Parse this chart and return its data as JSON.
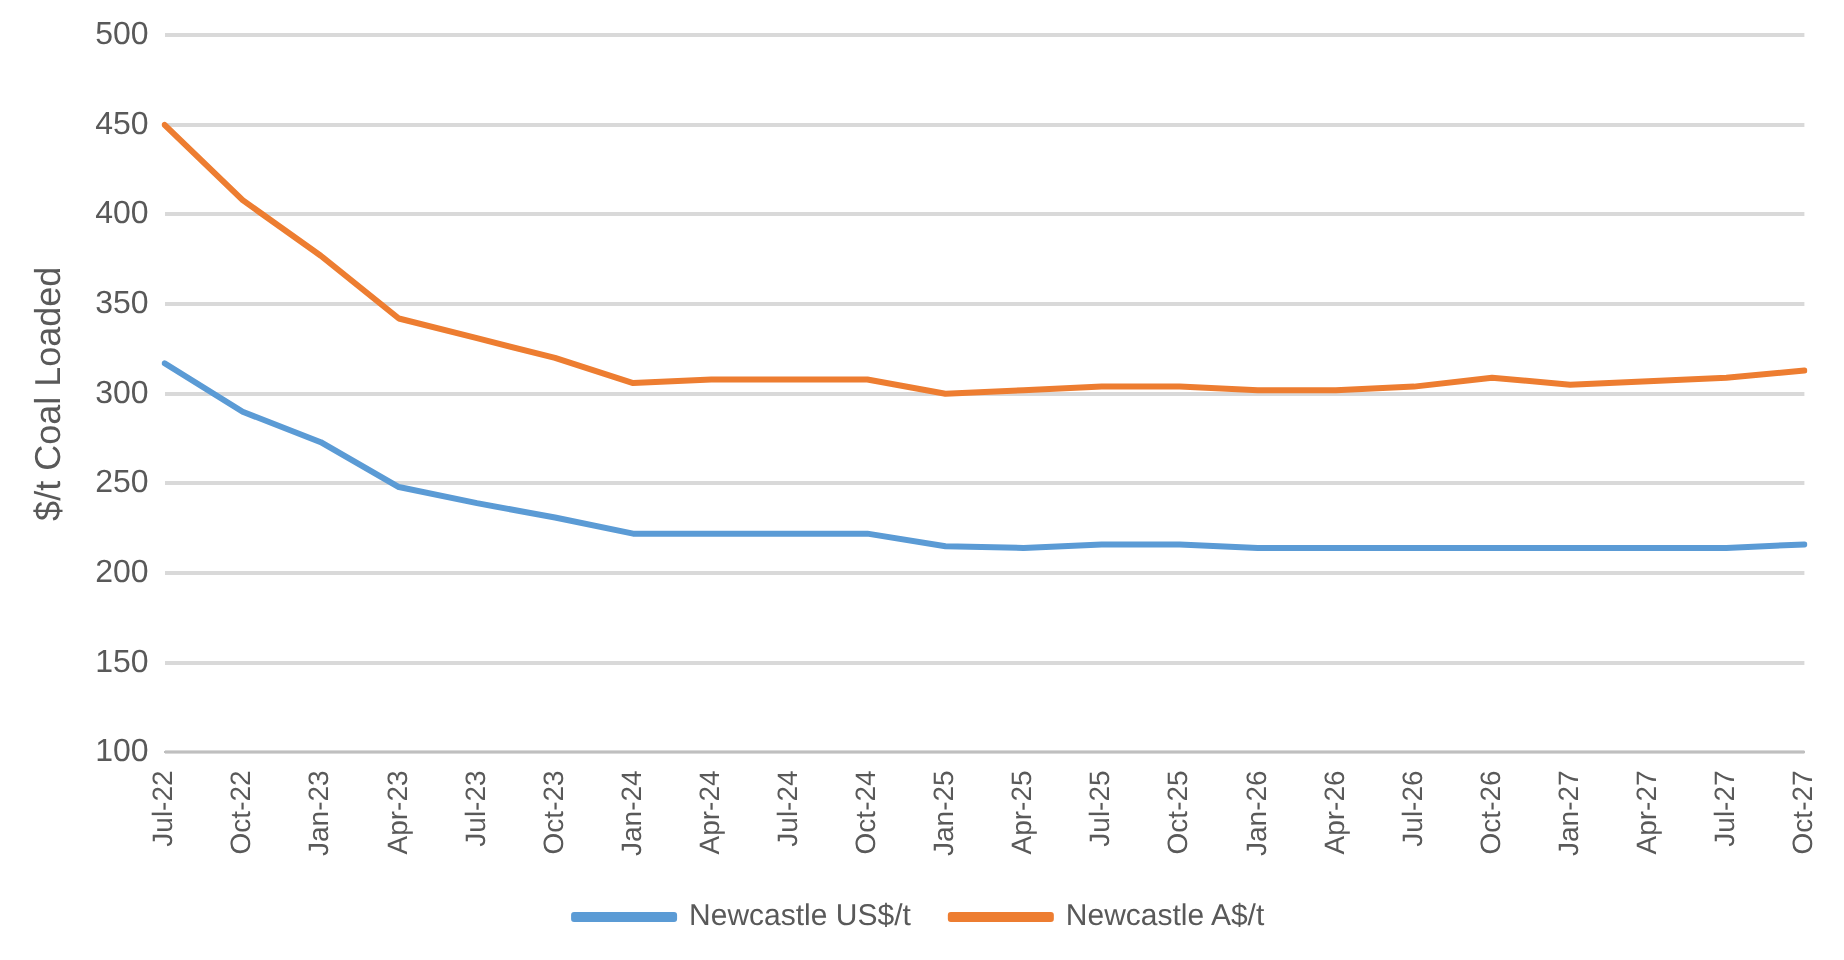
{
  "chart_data": {
    "type": "line",
    "ylabel": "$/t Coal Loaded",
    "categories": [
      "Jul-22",
      "Oct-22",
      "Jan-23",
      "Apr-23",
      "Jul-23",
      "Oct-23",
      "Jan-24",
      "Apr-24",
      "Jul-24",
      "Oct-24",
      "Jan-25",
      "Apr-25",
      "Jul-25",
      "Oct-25",
      "Jan-26",
      "Apr-26",
      "Jul-26",
      "Oct-26",
      "Jan-27",
      "Apr-27",
      "Jul-27",
      "Oct-27"
    ],
    "series": [
      {
        "name": "Newcastle US$/t",
        "color": "#5b9bd5",
        "values": [
          317,
          290,
          273,
          248,
          239,
          231,
          222,
          222,
          222,
          222,
          215,
          214,
          216,
          216,
          214,
          214,
          214,
          214,
          214,
          214,
          214,
          216
        ]
      },
      {
        "name": "Newcastle A$/t",
        "color": "#ed7d31",
        "values": [
          450,
          408,
          377,
          342,
          331,
          320,
          306,
          308,
          308,
          308,
          300,
          302,
          304,
          304,
          302,
          302,
          304,
          309,
          305,
          307,
          309,
          313
        ]
      }
    ],
    "ylim": [
      100,
      500
    ],
    "yticks": [
      100,
      150,
      200,
      250,
      300,
      350,
      400,
      450,
      500
    ],
    "grid": "y",
    "legend": "bottom",
    "marker": "none",
    "line_style": "solid"
  }
}
